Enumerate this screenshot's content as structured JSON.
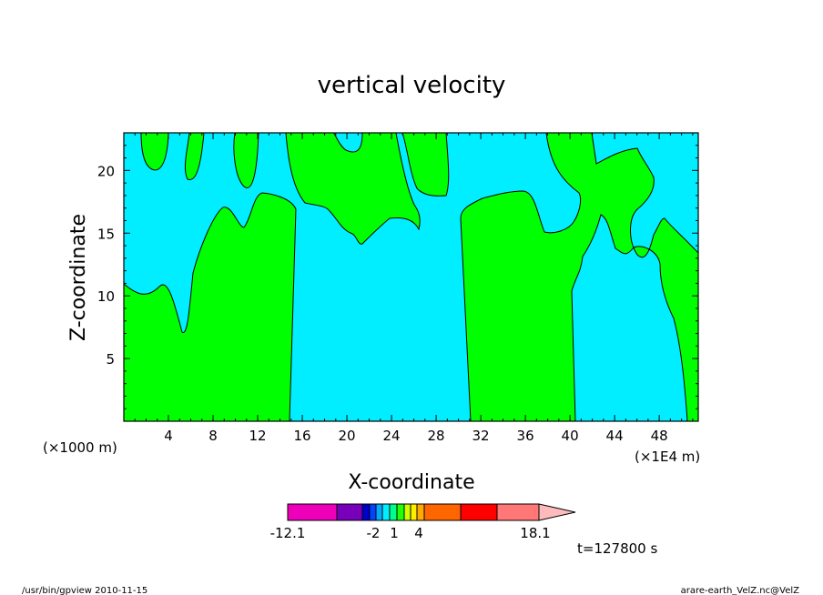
{
  "chart_data": {
    "type": "contour",
    "title": "vertical velocity",
    "xlabel": "X-coordinate",
    "ylabel": "Z-coordinate",
    "x_unit_left": "(×1000 m)",
    "x_unit_right": "(×1E4 m)",
    "xlim": [
      0,
      51.5
    ],
    "ylim": [
      0,
      23
    ],
    "x_ticks": [
      4,
      8,
      12,
      16,
      20,
      24,
      28,
      32,
      36,
      40,
      44,
      48
    ],
    "y_ticks": [
      5,
      10,
      15,
      20
    ],
    "fill_colors": {
      "positive": "#00ff00",
      "near_zero": "#00eeff"
    },
    "colorbar": {
      "labels": [
        "-12.1",
        "-2",
        "1",
        "4",
        "18.1"
      ],
      "colors": [
        "#ee00bb",
        "#7700bb",
        "#0000cc",
        "#0044ff",
        "#00aaff",
        "#00eeff",
        "#00ff88",
        "#22ff00",
        "#ccff00",
        "#ffee00",
        "#ffaa00",
        "#ff6600",
        "#ff0000",
        "#ff7777",
        "#ffbbbb"
      ]
    },
    "time_label": "t=127800 s",
    "footer_left": "/usr/bin/gpview   2010-11-15",
    "footer_right": "arare-earth_VelZ.nc@VelZ"
  }
}
